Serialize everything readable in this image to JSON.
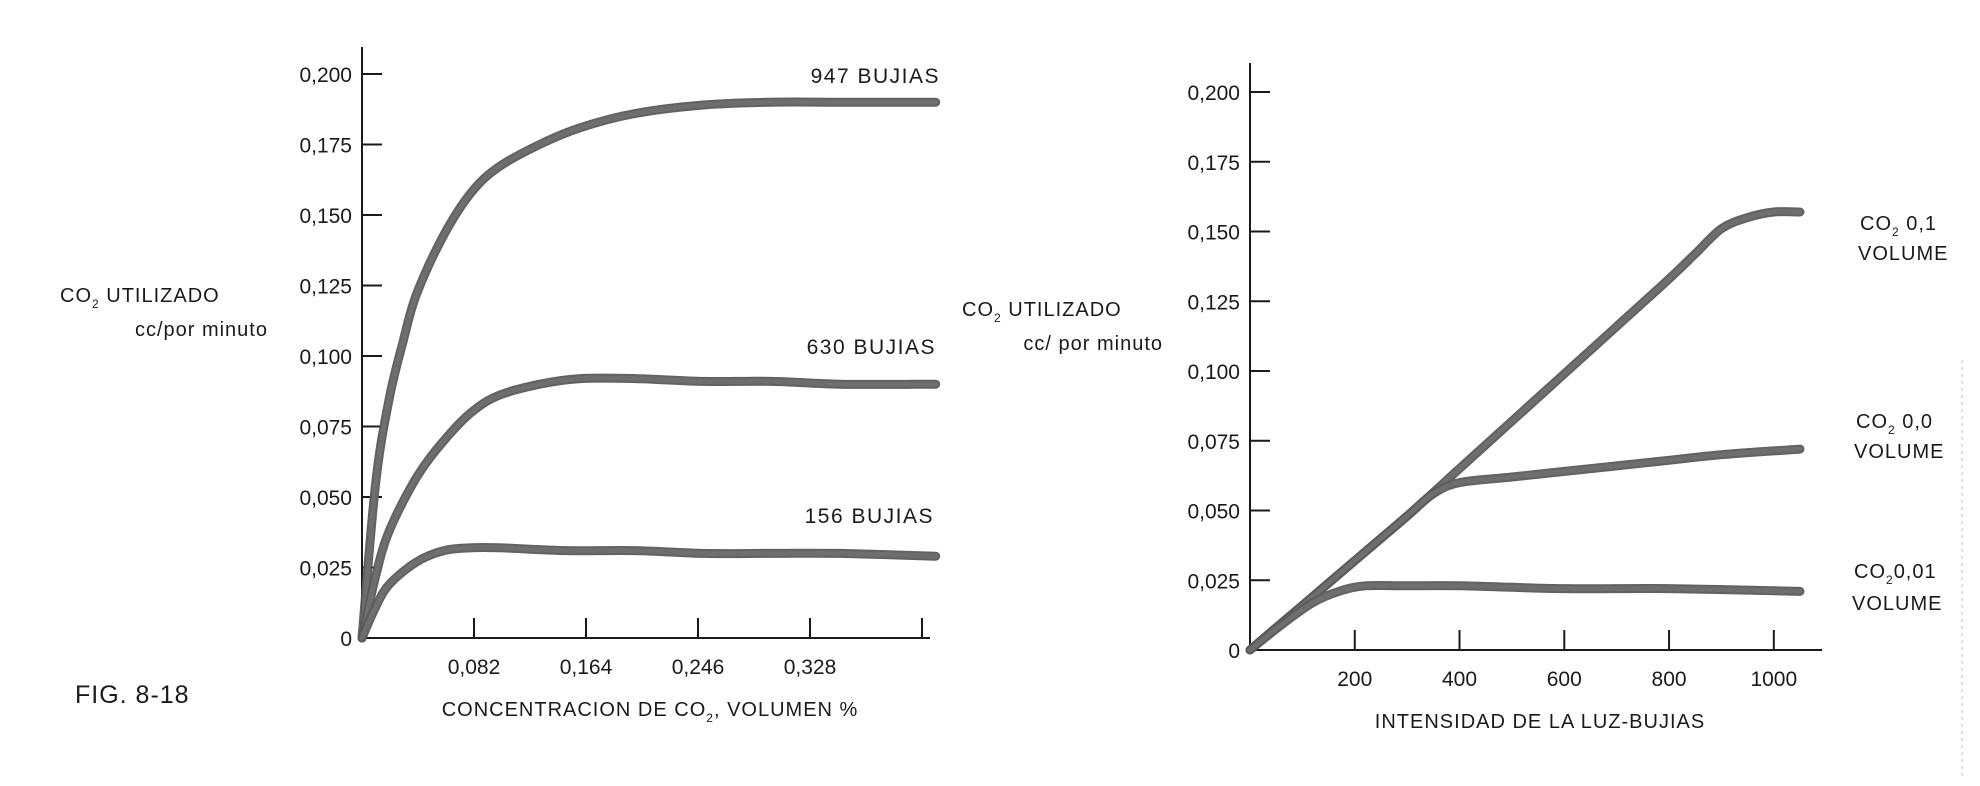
{
  "figure_label": "FIG. 8-18",
  "chart_data": [
    {
      "type": "line",
      "title": "",
      "xlabel": "CONCENTRACION DE CO",
      "xlabel_sub": "2",
      "xlabel_rest": ", VOLUMEN %",
      "ylabel_line1": "CO",
      "ylabel_sub": "2",
      "ylabel_rest": " UTILIZADO",
      "ylabel_line2": "cc/por minuto",
      "xlim": [
        0,
        0.41
      ],
      "ylim": [
        0,
        0.2
      ],
      "x_ticks": [
        0.082,
        0.164,
        0.246,
        0.328,
        0.41
      ],
      "x_tick_labels": [
        "0,082",
        "0,164",
        "0,246",
        "0,328",
        ""
      ],
      "y_ticks": [
        0,
        0.025,
        0.05,
        0.075,
        0.1,
        0.125,
        0.15,
        0.175,
        0.2
      ],
      "y_tick_labels": [
        "0",
        "0,025",
        "0,050",
        "0,075",
        "0,100",
        "0,125",
        "0,150",
        "0,175",
        "0,200"
      ],
      "series": [
        {
          "name": "947 BUJIAS",
          "points": [
            [
              0,
              0
            ],
            [
              0.01,
              0.055
            ],
            [
              0.02,
              0.085
            ],
            [
              0.03,
              0.105
            ],
            [
              0.04,
              0.122
            ],
            [
              0.06,
              0.143
            ],
            [
              0.08,
              0.158
            ],
            [
              0.1,
              0.167
            ],
            [
              0.13,
              0.175
            ],
            [
              0.16,
              0.181
            ],
            [
              0.2,
              0.186
            ],
            [
              0.25,
              0.189
            ],
            [
              0.3,
              0.19
            ],
            [
              0.35,
              0.19
            ],
            [
              0.42,
              0.19
            ]
          ]
        },
        {
          "name": "630 BUJIAS",
          "points": [
            [
              0,
              0
            ],
            [
              0.01,
              0.022
            ],
            [
              0.02,
              0.038
            ],
            [
              0.04,
              0.057
            ],
            [
              0.06,
              0.07
            ],
            [
              0.08,
              0.08
            ],
            [
              0.1,
              0.086
            ],
            [
              0.13,
              0.09
            ],
            [
              0.16,
              0.092
            ],
            [
              0.2,
              0.092
            ],
            [
              0.25,
              0.091
            ],
            [
              0.3,
              0.091
            ],
            [
              0.35,
              0.09
            ],
            [
              0.42,
              0.09
            ]
          ]
        },
        {
          "name": "156 BUJIAS",
          "points": [
            [
              0,
              0
            ],
            [
              0.01,
              0.011
            ],
            [
              0.02,
              0.019
            ],
            [
              0.04,
              0.027
            ],
            [
              0.06,
              0.031
            ],
            [
              0.08,
              0.032
            ],
            [
              0.1,
              0.032
            ],
            [
              0.15,
              0.031
            ],
            [
              0.2,
              0.031
            ],
            [
              0.25,
              0.03
            ],
            [
              0.3,
              0.03
            ],
            [
              0.35,
              0.03
            ],
            [
              0.42,
              0.029
            ]
          ]
        }
      ]
    },
    {
      "type": "line",
      "title": "",
      "xlabel": "INTENSIDAD DE LA LUZ-BUJIAS",
      "ylabel_line1": "CO",
      "ylabel_sub": "2",
      "ylabel_rest": " UTILIZADO",
      "ylabel_line2": "cc/ por minuto",
      "xlim": [
        0,
        1050
      ],
      "ylim": [
        0,
        0.2
      ],
      "x_ticks": [
        200,
        400,
        600,
        800,
        1000
      ],
      "x_tick_labels": [
        "200",
        "400",
        "600",
        "800",
        "1000"
      ],
      "y_ticks": [
        0,
        0.025,
        0.05,
        0.075,
        0.1,
        0.125,
        0.15,
        0.175,
        0.2
      ],
      "y_tick_labels": [
        "0",
        "0,025",
        "0,050",
        "0,075",
        "0,100",
        "0,125",
        "0,150",
        "0,175",
        "0,200"
      ],
      "series": [
        {
          "name_line1": "CO",
          "name_sub": "2",
          "name_rest": " 0,1",
          "name_line2": "VOLUME",
          "points": [
            [
              0,
              0
            ],
            [
              100,
              0.016
            ],
            [
              200,
              0.032
            ],
            [
              300,
              0.048
            ],
            [
              400,
              0.065
            ],
            [
              500,
              0.082
            ],
            [
              600,
              0.099
            ],
            [
              700,
              0.116
            ],
            [
              800,
              0.133
            ],
            [
              850,
              0.142
            ],
            [
              900,
              0.151
            ],
            [
              950,
              0.155
            ],
            [
              1000,
              0.157
            ],
            [
              1050,
              0.157
            ]
          ]
        },
        {
          "name_line1": "CO",
          "name_sub": "2",
          "name_rest": " 0,0",
          "name_line2": "VOLUME",
          "points": [
            [
              0,
              0
            ],
            [
              100,
              0.016
            ],
            [
              200,
              0.032
            ],
            [
              300,
              0.048
            ],
            [
              350,
              0.056
            ],
            [
              400,
              0.06
            ],
            [
              500,
              0.062
            ],
            [
              600,
              0.064
            ],
            [
              700,
              0.066
            ],
            [
              800,
              0.068
            ],
            [
              900,
              0.07
            ],
            [
              1050,
              0.072
            ]
          ]
        },
        {
          "name_line1": "CO",
          "name_sub": "2",
          "name_rest": "0,01",
          "name_line2": "VOLUME",
          "points": [
            [
              0,
              0
            ],
            [
              60,
              0.009
            ],
            [
              120,
              0.017
            ],
            [
              170,
              0.021
            ],
            [
              220,
              0.023
            ],
            [
              300,
              0.023
            ],
            [
              400,
              0.023
            ],
            [
              600,
              0.022
            ],
            [
              800,
              0.022
            ],
            [
              1050,
              0.021
            ]
          ]
        }
      ]
    }
  ]
}
